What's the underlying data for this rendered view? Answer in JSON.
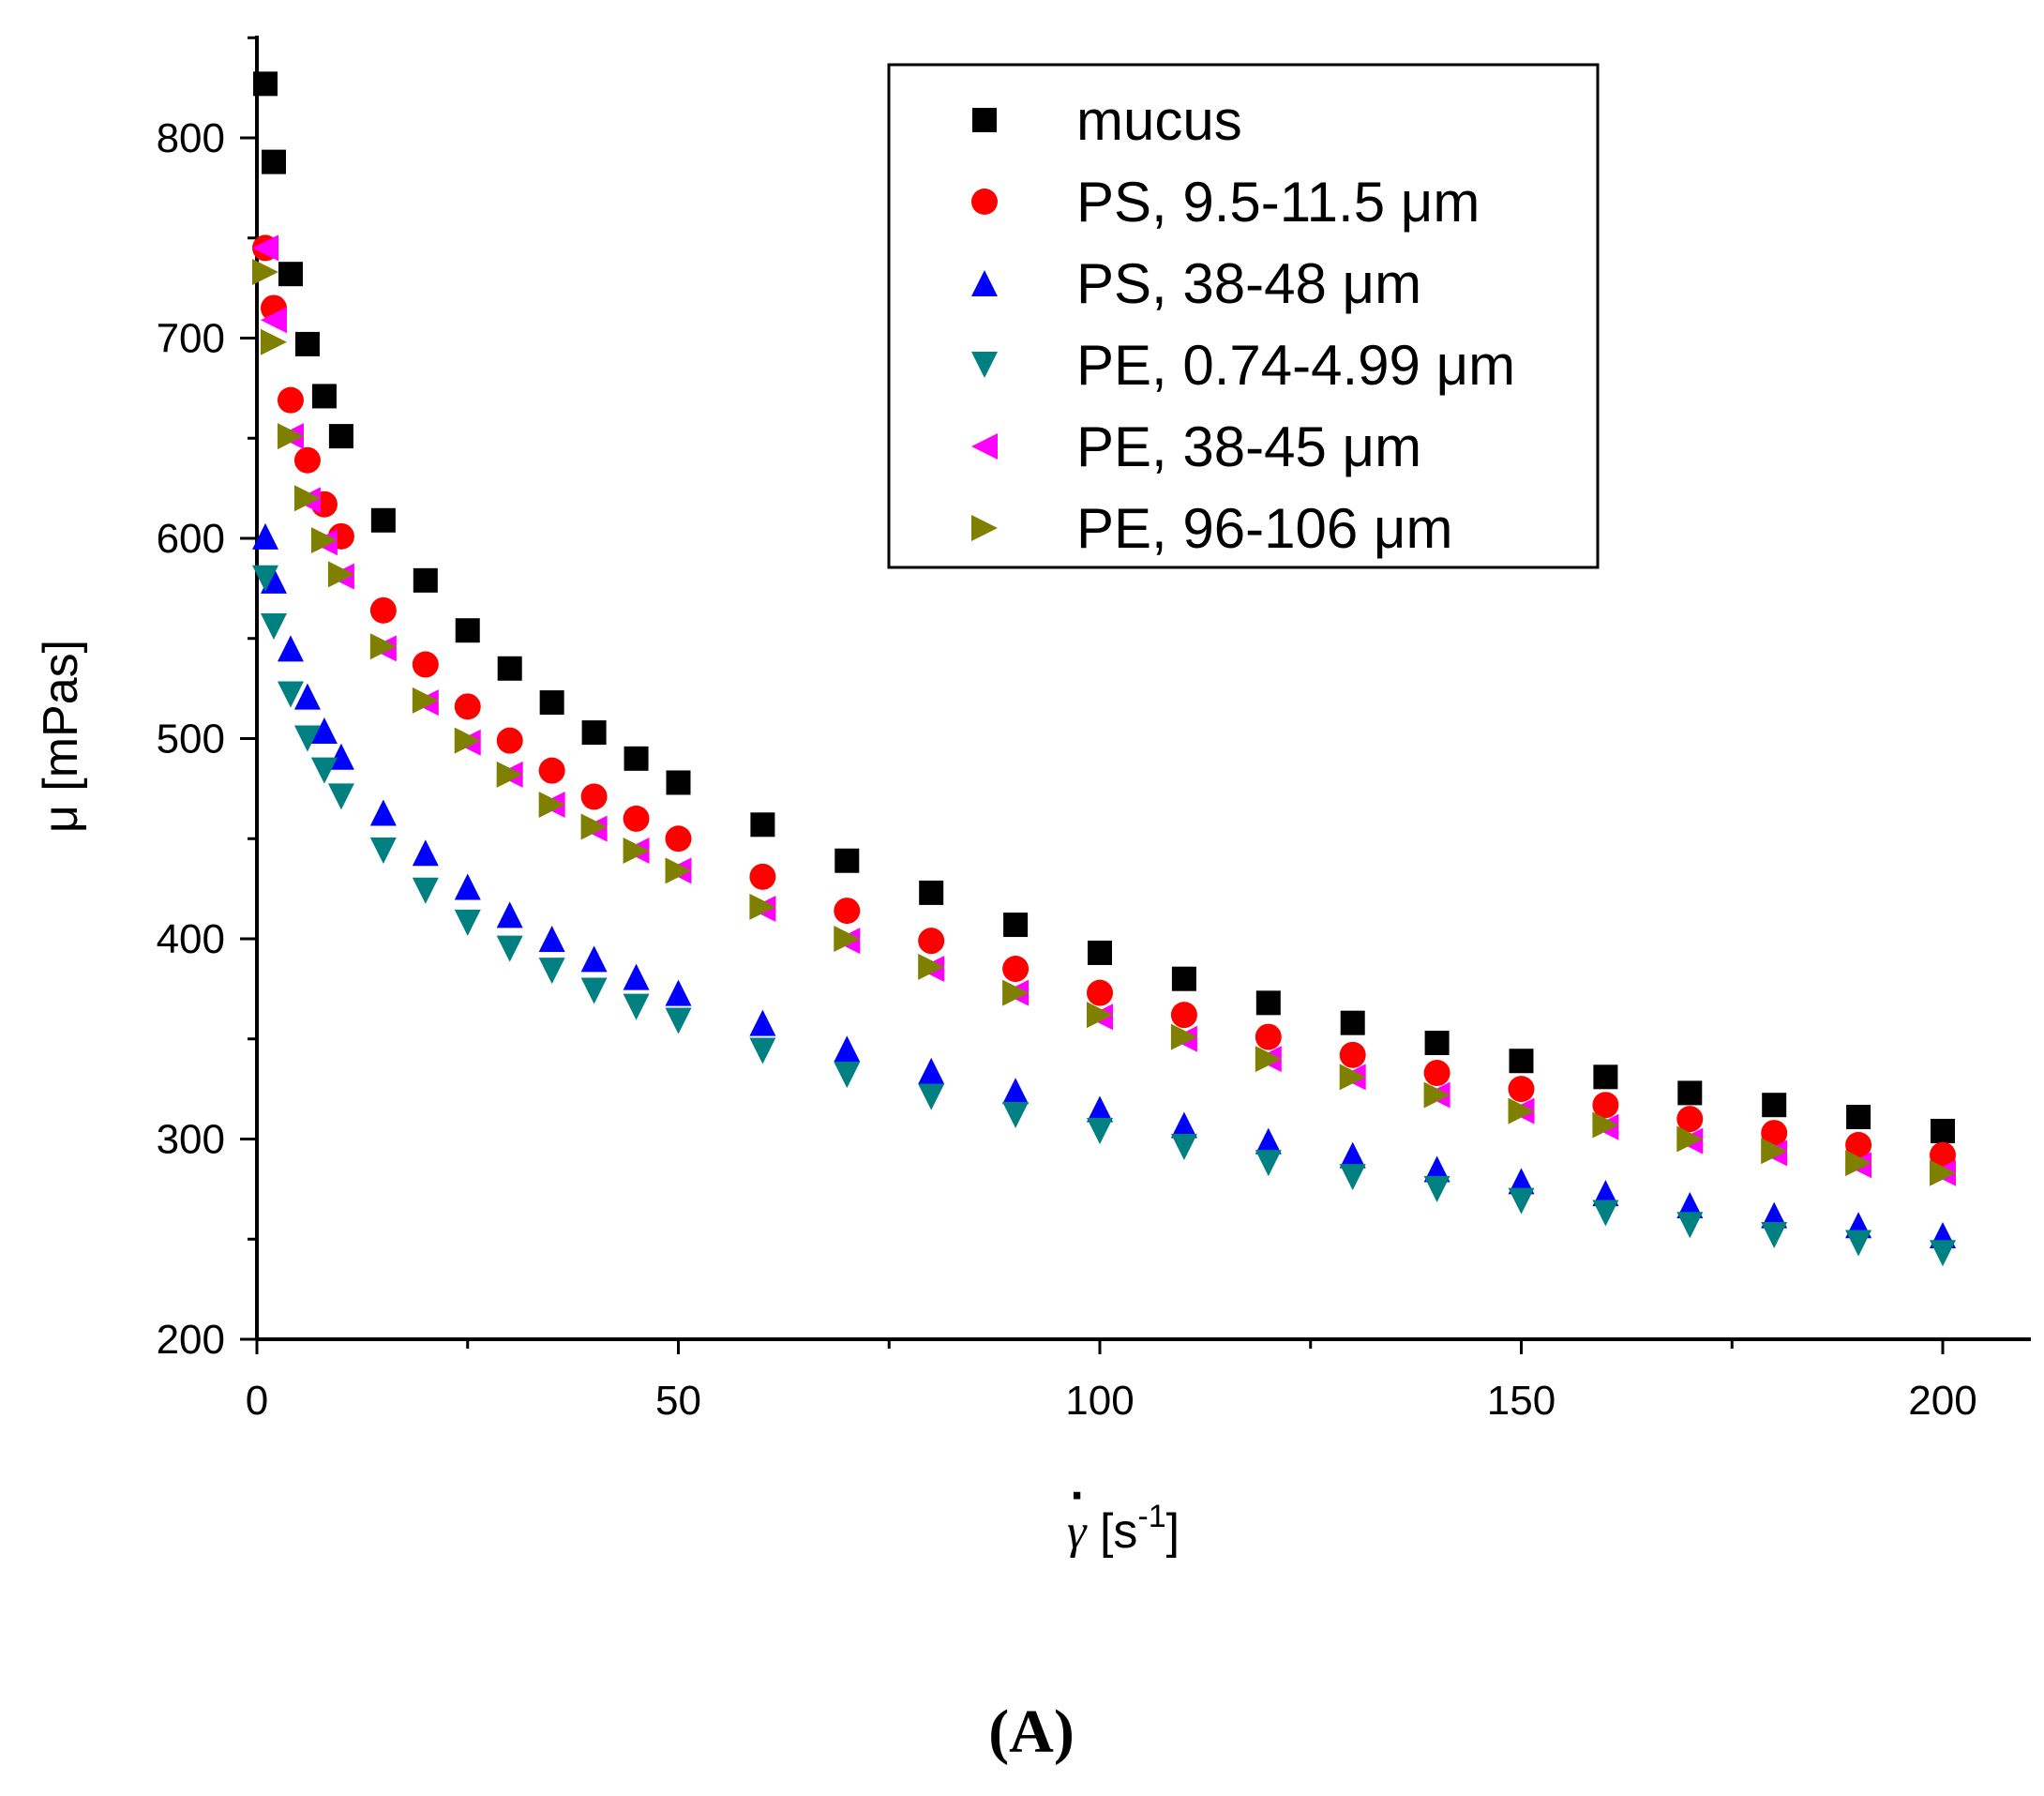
{
  "panel_label": "(A)",
  "chart_data": {
    "type": "scatter",
    "xlabel": "γ̇ [s⁻¹]",
    "xlabel_symbol": "γ",
    "xlabel_dot": "·",
    "xlabel_unit_open": " [s",
    "xlabel_unit_exp": "-1",
    "xlabel_unit_close": "]",
    "ylabel": "μ [mPas]",
    "xlim": [
      0,
      210
    ],
    "ylim": [
      200,
      850
    ],
    "xticks": [
      0,
      50,
      100,
      150,
      200
    ],
    "yticks": [
      200,
      300,
      400,
      500,
      600,
      700,
      800
    ],
    "legend_position": "top-right",
    "series": [
      {
        "name": "mucus",
        "marker": "square",
        "color": "#000000",
        "x": [
          1,
          2,
          4,
          6,
          8,
          10,
          15,
          20,
          25,
          30,
          35,
          40,
          45,
          50,
          60,
          70,
          80,
          90,
          100,
          110,
          120,
          130,
          140,
          150,
          160,
          170,
          180,
          190,
          200
        ],
        "y": [
          827,
          788,
          732,
          697,
          671,
          651,
          609,
          579,
          554,
          535,
          518,
          503,
          490,
          478,
          457,
          439,
          423,
          407,
          393,
          380,
          368,
          358,
          348,
          339,
          331,
          323,
          317,
          311,
          304
        ]
      },
      {
        "name": "PS, 9.5-11.5 μm",
        "marker": "circle",
        "color": "#ff0000",
        "x": [
          1,
          2,
          4,
          6,
          8,
          10,
          15,
          20,
          25,
          30,
          35,
          40,
          45,
          50,
          60,
          70,
          80,
          90,
          100,
          110,
          120,
          130,
          140,
          150,
          160,
          170,
          180,
          190,
          200
        ],
        "y": [
          745,
          715,
          669,
          639,
          617,
          601,
          564,
          537,
          516,
          499,
          484,
          471,
          460,
          450,
          431,
          414,
          399,
          385,
          373,
          362,
          351,
          342,
          333,
          325,
          317,
          310,
          303,
          297,
          292
        ]
      },
      {
        "name": "PS, 38-48 μm",
        "marker": "triangle-up",
        "color": "#0000ff",
        "x": [
          1,
          2,
          4,
          6,
          8,
          10,
          15,
          20,
          25,
          30,
          35,
          40,
          45,
          50,
          60,
          70,
          80,
          90,
          100,
          110,
          120,
          130,
          140,
          150,
          160,
          170,
          180,
          190,
          200
        ],
        "y": [
          601,
          579,
          545,
          521,
          504,
          491,
          463,
          443,
          426,
          412,
          400,
          390,
          381,
          373,
          358,
          345,
          334,
          324,
          315,
          307,
          299,
          292,
          285,
          279,
          273,
          267,
          262,
          257,
          252
        ]
      },
      {
        "name": "PE, 0.74-4.99 μm",
        "marker": "triangle-down",
        "color": "#008080",
        "x": [
          1,
          2,
          4,
          6,
          8,
          10,
          15,
          20,
          25,
          30,
          35,
          40,
          45,
          50,
          60,
          70,
          80,
          90,
          100,
          110,
          120,
          130,
          140,
          150,
          160,
          170,
          180,
          190,
          200
        ],
        "y": [
          580,
          556,
          522,
          500,
          484,
          471,
          444,
          424,
          408,
          395,
          384,
          374,
          366,
          359,
          344,
          332,
          321,
          312,
          304,
          296,
          288,
          281,
          275,
          269,
          263,
          257,
          252,
          248,
          243
        ]
      },
      {
        "name": "PE, 38-45 μm",
        "marker": "triangle-left",
        "color": "#ff00ff",
        "x": [
          1,
          2,
          4,
          6,
          8,
          10,
          15,
          20,
          25,
          30,
          35,
          40,
          45,
          50,
          60,
          70,
          80,
          90,
          100,
          110,
          120,
          130,
          140,
          150,
          160,
          170,
          180,
          190,
          200
        ],
        "y": [
          745,
          709,
          651,
          619,
          598,
          581,
          545,
          518,
          498,
          482,
          467,
          455,
          444,
          434,
          415,
          399,
          385,
          373,
          361,
          350,
          340,
          331,
          322,
          314,
          306,
          299,
          293,
          287,
          283
        ]
      },
      {
        "name": "PE, 96-106 μm",
        "marker": "triangle-right",
        "color": "#808000",
        "x": [
          1,
          2,
          4,
          6,
          8,
          10,
          15,
          20,
          25,
          30,
          35,
          40,
          45,
          50,
          60,
          70,
          80,
          90,
          100,
          110,
          120,
          130,
          140,
          150,
          160,
          170,
          180,
          190,
          200
        ],
        "y": [
          733,
          698,
          651,
          620,
          599,
          582,
          546,
          519,
          499,
          482,
          467,
          456,
          444,
          434,
          416,
          400,
          386,
          373,
          362,
          351,
          340,
          331,
          322,
          314,
          307,
          300,
          294,
          288,
          283
        ]
      }
    ]
  }
}
